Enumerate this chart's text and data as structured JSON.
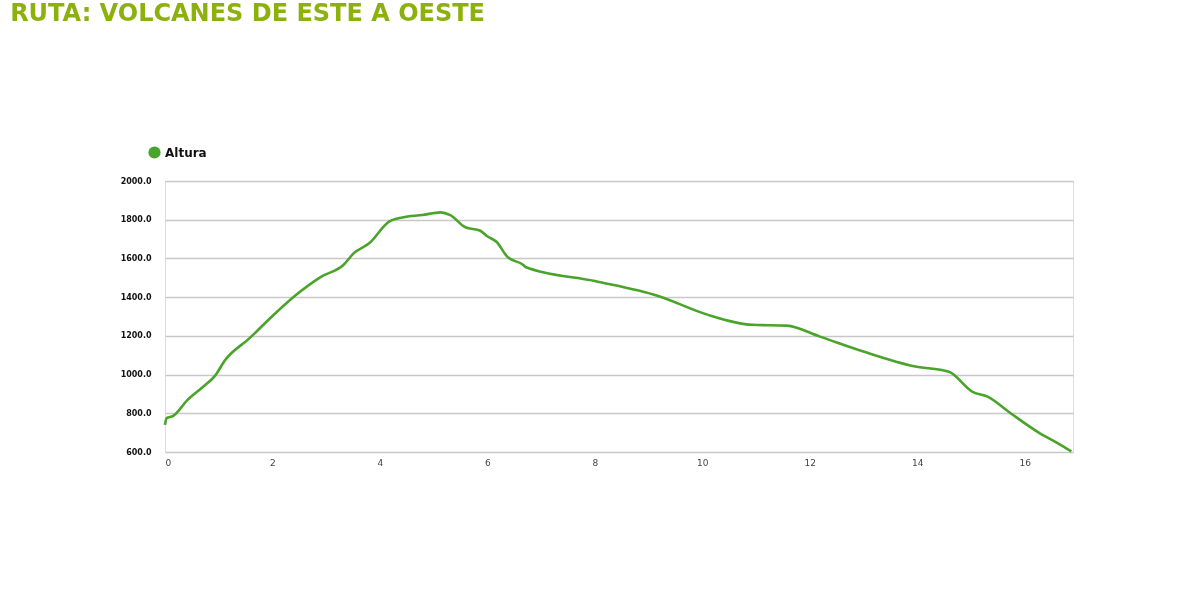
{
  "chart_data": {
    "type": "line",
    "title": "RUTA: VOLCANES DE ESTE A OESTE",
    "x": [
      0,
      0.03,
      0.15,
      0.42,
      0.71,
      0.93,
      1.12,
      1.57,
      2.02,
      2.46,
      2.91,
      3.32,
      3.51,
      3.8,
      4.17,
      4.42,
      4.79,
      5.13,
      5.31,
      5.59,
      5.87,
      5.99,
      6.17,
      6.37,
      6.67,
      6.71,
      8.0,
      9.18,
      10.08,
      10.93,
      11.57,
      12.19,
      13.0,
      13.94,
      14.59,
      15.04,
      15.31,
      15.72,
      16.27,
      16.62,
      16.87
    ],
    "series": [
      {
        "name": "Altura",
        "color": "#4aa32a",
        "values": [
          740,
          775,
          786,
          869,
          937,
          993,
          1075,
          1187,
          1308,
          1416,
          1506,
          1566,
          1626,
          1678,
          1790,
          1812,
          1824,
          1838,
          1824,
          1761,
          1743,
          1716,
          1686,
          1609,
          1566,
          1556,
          1483,
          1406,
          1311,
          1257,
          1253,
          1196,
          1119,
          1043,
          1014,
          909,
          886,
          804,
          699,
          645,
          603
        ]
      }
    ],
    "xlim": [
      0,
      16.9
    ],
    "xticks": [
      0,
      2,
      4,
      6,
      8,
      10,
      12,
      14,
      16
    ],
    "ylim": [
      600,
      2000
    ],
    "yticks": [
      {
        "value": 600,
        "label": "600.0"
      },
      {
        "value": 800,
        "label": "800.0"
      },
      {
        "value": 1000,
        "label": "1000.0"
      },
      {
        "value": 1200,
        "label": "1200.0"
      },
      {
        "value": 1400,
        "label": "1400.0"
      },
      {
        "value": 1600,
        "label": "1600.0"
      },
      {
        "value": 1800,
        "label": "1800.0"
      },
      {
        "value": 2000,
        "label": "2000.0"
      }
    ],
    "grid": "y",
    "legend": "top left",
    "marker": "none",
    "line_style": "solid"
  }
}
